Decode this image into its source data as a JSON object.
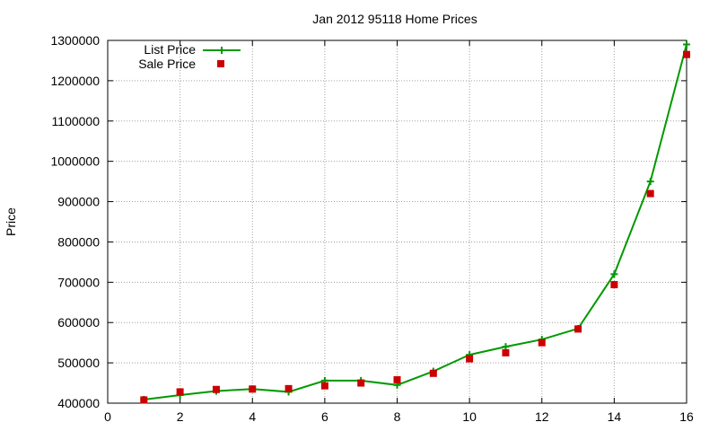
{
  "chart_data": {
    "type": "line",
    "title": "Jan 2012 95118 Home Prices",
    "xlabel": "",
    "ylabel": "Price",
    "xlim": [
      0,
      16
    ],
    "ylim": [
      400000,
      1300000
    ],
    "x_ticks": [
      "0",
      "2",
      "4",
      "6",
      "8",
      "10",
      "12",
      "14",
      "16"
    ],
    "y_ticks": [
      "400000",
      "500000",
      "600000",
      "700000",
      "800000",
      "900000",
      "1000000",
      "1100000",
      "1200000",
      "1300000"
    ],
    "grid": true,
    "legend_position": "top-left",
    "series": [
      {
        "name": "List Price",
        "style": "line-with-plus-markers",
        "color": "#009900",
        "x": [
          1,
          2,
          3,
          4,
          5,
          6,
          7,
          8,
          9,
          10,
          11,
          12,
          13,
          14,
          15,
          16
        ],
        "y": [
          409000,
          420000,
          430000,
          435000,
          428000,
          456000,
          456000,
          445000,
          479000,
          520000,
          540000,
          558000,
          585000,
          720000,
          950000,
          1290000
        ]
      },
      {
        "name": "Sale Price",
        "style": "square-markers",
        "color": "#cc0000",
        "x": [
          1,
          2,
          3,
          4,
          5,
          6,
          7,
          8,
          9,
          10,
          11,
          12,
          13,
          14,
          15,
          16
        ],
        "y": [
          408000,
          428000,
          434000,
          435000,
          436000,
          443000,
          450000,
          458000,
          474000,
          510000,
          525000,
          550000,
          584000,
          694000,
          920000,
          1265000
        ]
      }
    ]
  }
}
